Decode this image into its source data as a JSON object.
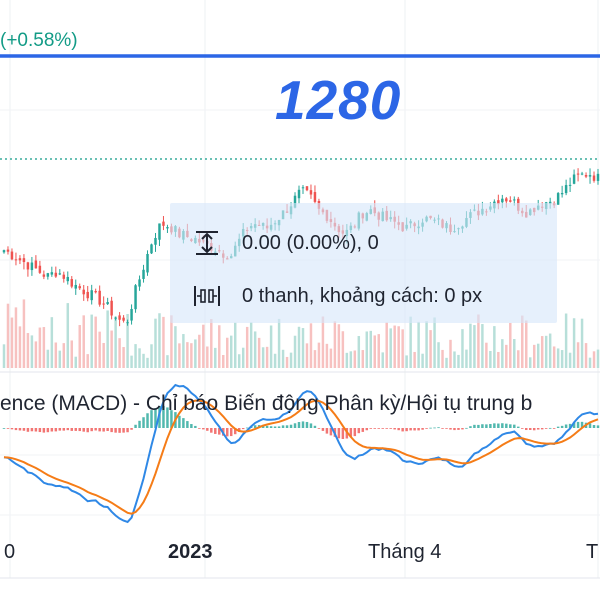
{
  "header": {
    "change_text": "(+0.58%)",
    "level_label": "1280"
  },
  "measure_box": {
    "price_change_text": "0.00 (0.00%), 0",
    "bars_text": "0 thanh, khoảng cách: 0 px",
    "price_icon": "price-range-icon",
    "bars_icon": "bar-distance-icon"
  },
  "macd_panel": {
    "title": "ence (MACD) - Chỉ báo Biến động Phân kỳ/Hội tụ trung b"
  },
  "x_axis": {
    "labels": [
      {
        "text": "0"
      },
      {
        "text": "2023",
        "bold": true
      },
      {
        "text": "Tháng 4"
      },
      {
        "text": "T"
      }
    ]
  },
  "colors": {
    "up": "#26a69a",
    "down": "#ef5350",
    "volume_up": "#b7dfd9",
    "volume_down": "#f7c1c0",
    "level_line": "#2c66e6",
    "macd_line": "#2f88e6",
    "signal_line": "#f57c17",
    "overlay_bg": "#d6e6fa"
  },
  "chart_data": {
    "type": "candlestick",
    "price_axis": {
      "visible": false
    },
    "horizontal_line_label": "1280",
    "close_path": [
      1040,
      1030,
      1020,
      1010,
      1000,
      990,
      1000,
      990,
      975,
      965,
      955,
      945,
      930,
      910,
      900,
      960,
      1010,
      1060,
      1090,
      1085,
      1070,
      1065,
      1060,
      1050,
      1045,
      1035,
      1030,
      1060,
      1085,
      1090,
      1080,
      1095,
      1110,
      1130,
      1150,
      1140,
      1115,
      1105,
      1085,
      1070,
      1085,
      1110,
      1115,
      1105,
      1095,
      1090,
      1080,
      1090,
      1100,
      1095,
      1090,
      1080,
      1090,
      1100,
      1110,
      1120,
      1130,
      1140,
      1135,
      1120,
      1110,
      1125,
      1130,
      1135,
      1150,
      1170,
      1180,
      1185,
      1175
    ]
  }
}
